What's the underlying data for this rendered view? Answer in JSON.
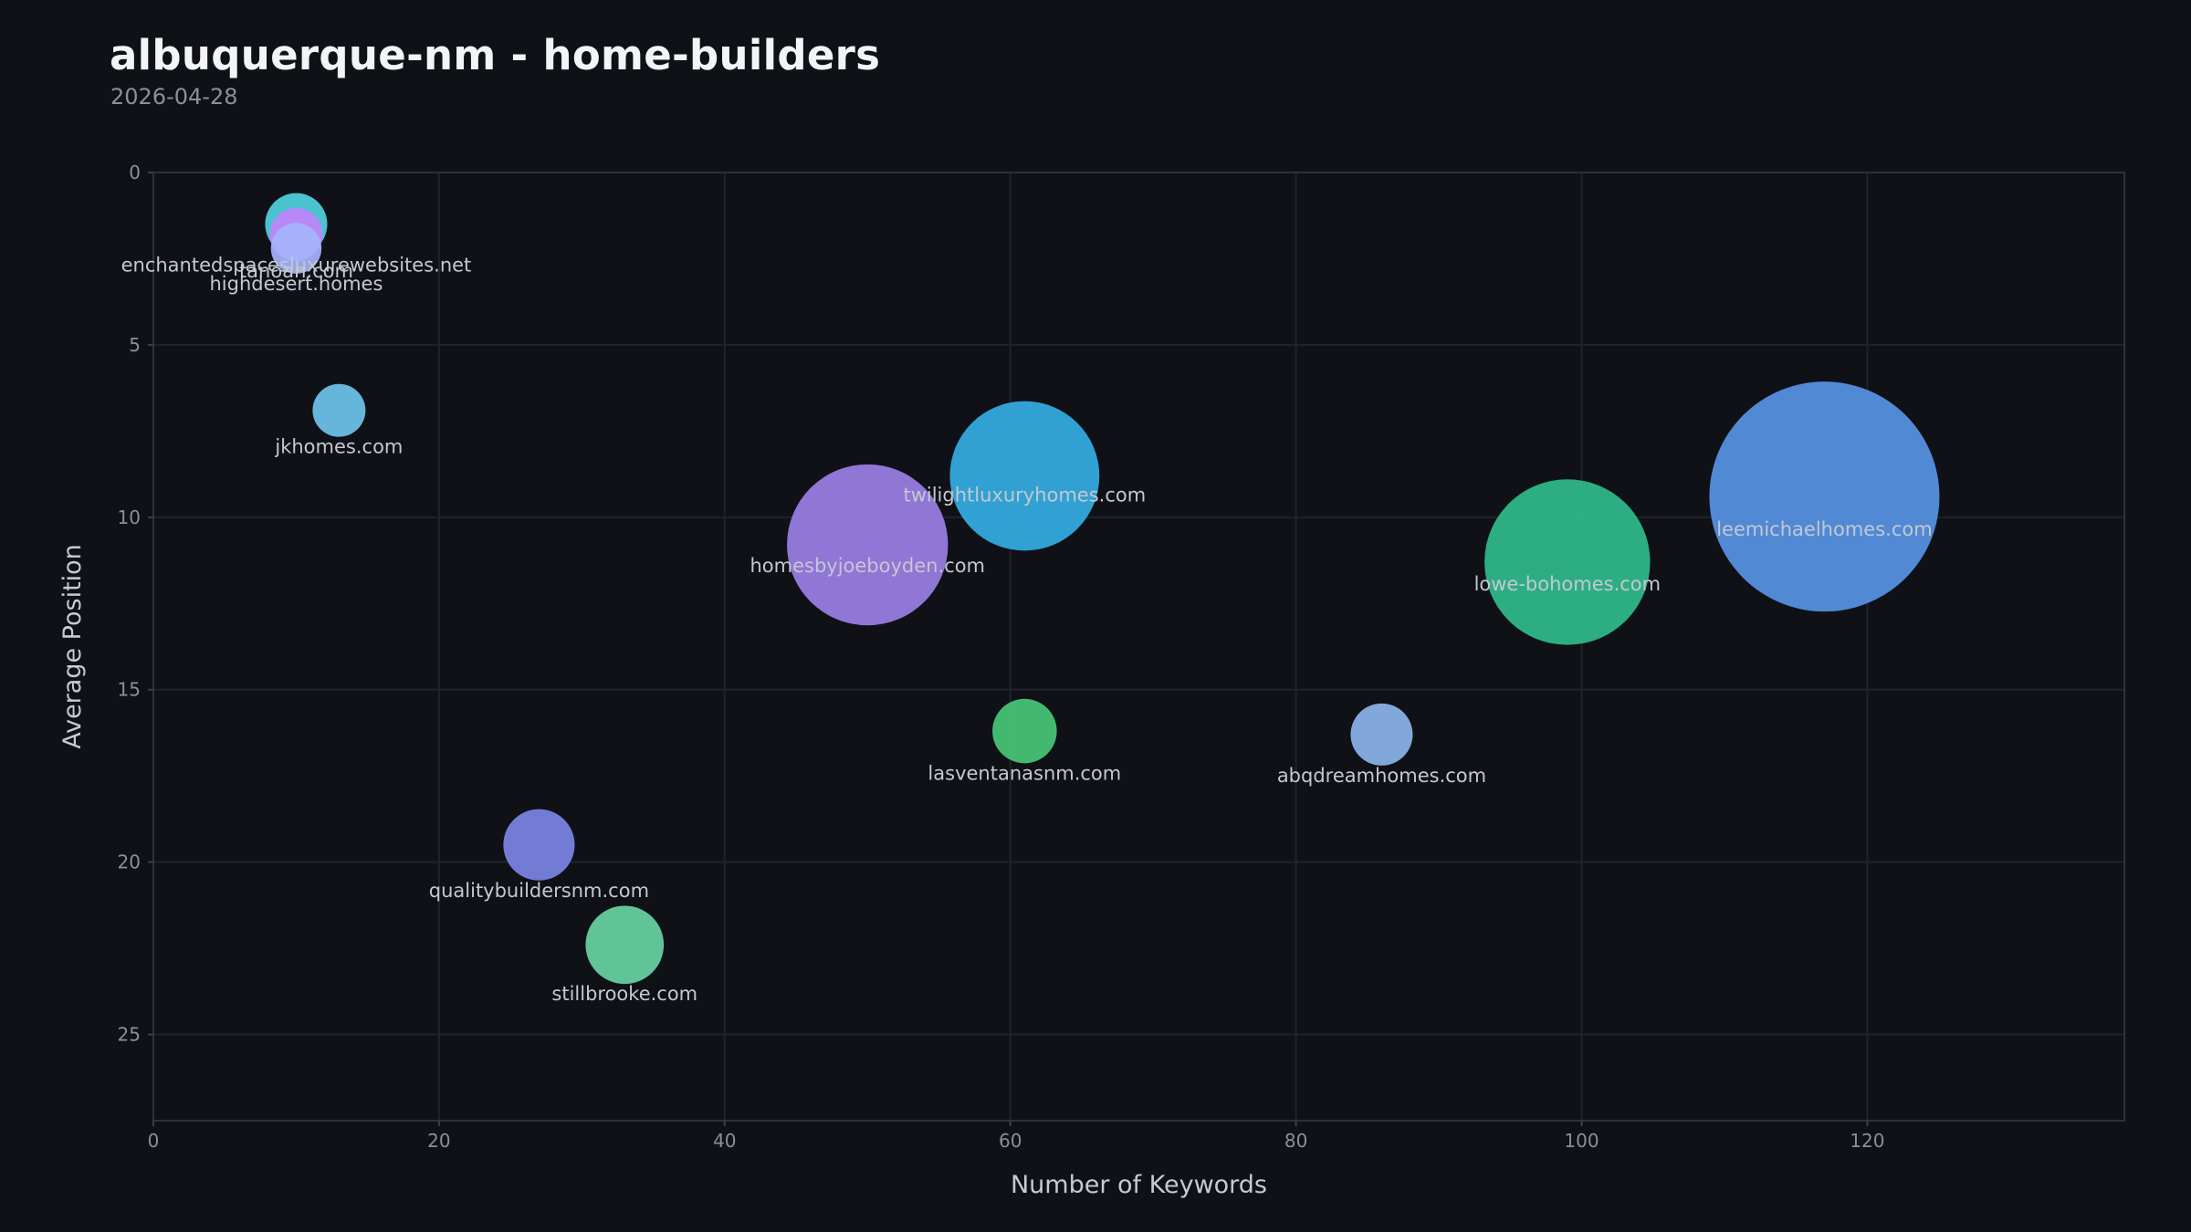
{
  "header": {
    "title": "albuquerque-nm - home-builders",
    "date": "2026-04-28"
  },
  "chart_data": {
    "type": "scatter",
    "title": "albuquerque-nm - home-builders",
    "subtitle": "2026-04-28",
    "xlabel": "Number of Keywords",
    "ylabel": "Average Position",
    "xlim": [
      0,
      138
    ],
    "ylim": [
      27.5,
      0
    ],
    "y_inverted": true,
    "xticks": [
      0,
      20,
      40,
      60,
      80,
      100,
      120
    ],
    "yticks": [
      0,
      5,
      10,
      15,
      20,
      25
    ],
    "grid": true,
    "points": [
      {
        "label": "enchantedspacesluxurewebsites.net",
        "x": 10,
        "y": 1.5,
        "size": 2.7,
        "color": "#4fd1e0"
      },
      {
        "label": "tanoan.com",
        "x": 10,
        "y": 1.8,
        "size": 2.3,
        "color": "#c084fc"
      },
      {
        "label": "highdesert.homes",
        "x": 10,
        "y": 2.2,
        "size": 2.2,
        "color": "#a5b4fc"
      },
      {
        "label": "jkhomes.com",
        "x": 13,
        "y": 6.9,
        "size": 2.3,
        "color": "#6cc4ec"
      },
      {
        "label": "twilightluxuryhomes.com",
        "x": 61,
        "y": 8.8,
        "size": 6.5,
        "color": "#34aee4"
      },
      {
        "label": "homesbyjoeboyden.com",
        "x": 50,
        "y": 10.8,
        "size": 7.0,
        "color": "#9b7fe6"
      },
      {
        "label": "leemichaelhomes.com",
        "x": 117,
        "y": 9.4,
        "size": 10.0,
        "color": "#5794e6"
      },
      {
        "label": "lowe-bohomes.com",
        "x": 99,
        "y": 11.3,
        "size": 7.2,
        "color": "#30bc8c"
      },
      {
        "label": "lasventanasnm.com",
        "x": 61,
        "y": 16.2,
        "size": 2.8,
        "color": "#48c878"
      },
      {
        "label": "abqdreamhomes.com",
        "x": 86,
        "y": 16.3,
        "size": 2.7,
        "color": "#8cb4ec"
      },
      {
        "label": "qualitybuildersnm.com",
        "x": 27,
        "y": 19.5,
        "size": 3.1,
        "color": "#7c86e6"
      },
      {
        "label": "stillbrooke.com",
        "x": 33,
        "y": 22.4,
        "size": 3.4,
        "color": "#68d4a4"
      }
    ]
  }
}
